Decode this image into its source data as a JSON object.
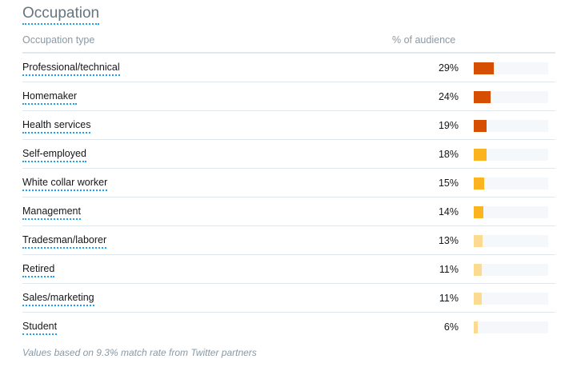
{
  "section": {
    "title": "Occupation",
    "header": {
      "type_label": "Occupation type",
      "percent_label": "% of audience"
    },
    "rows": [
      {
        "label": "Professional/technical",
        "percent_text": "29%",
        "value": 29,
        "color": "#d54e02"
      },
      {
        "label": "Homemaker",
        "percent_text": "24%",
        "value": 24,
        "color": "#d54e02"
      },
      {
        "label": "Health services",
        "percent_text": "19%",
        "value": 19,
        "color": "#d54e02"
      },
      {
        "label": "Self-employed",
        "percent_text": "18%",
        "value": 18,
        "color": "#fbb41f"
      },
      {
        "label": "White collar worker",
        "percent_text": "15%",
        "value": 15,
        "color": "#fbb41f"
      },
      {
        "label": "Management",
        "percent_text": "14%",
        "value": 14,
        "color": "#fbb41f"
      },
      {
        "label": "Tradesman/laborer",
        "percent_text": "13%",
        "value": 13,
        "color": "#fcdb90"
      },
      {
        "label": "Retired",
        "percent_text": "11%",
        "value": 11,
        "color": "#fcdb90"
      },
      {
        "label": "Sales/marketing",
        "percent_text": "11%",
        "value": 11,
        "color": "#fcdb90"
      },
      {
        "label": "Student",
        "percent_text": "6%",
        "value": 6,
        "color": "#fcdb90"
      }
    ],
    "footnote": "Values based on 9.3% match rate from Twitter partners"
  }
}
